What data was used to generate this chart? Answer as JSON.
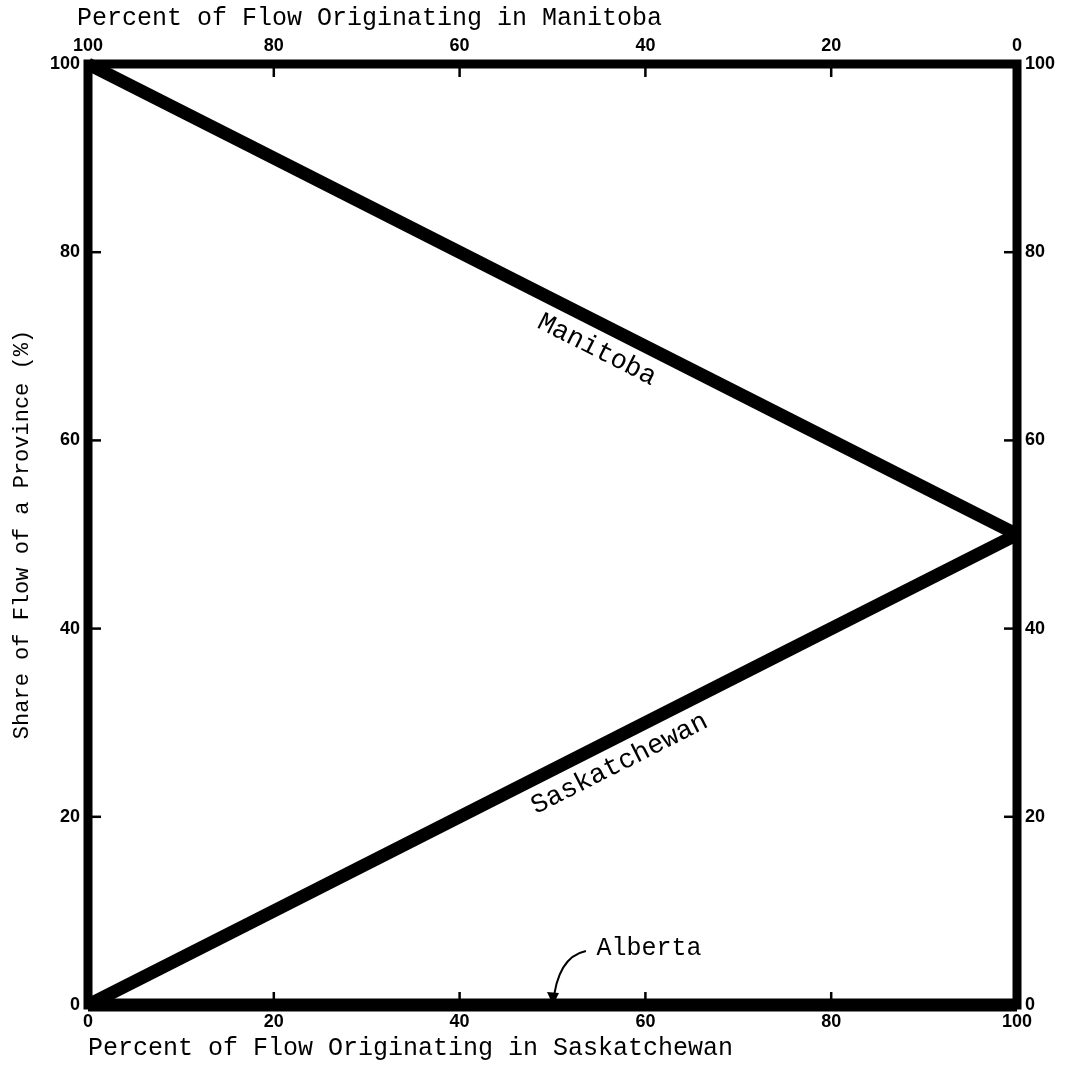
{
  "chart_data": {
    "type": "line",
    "xlabel": "Percent of Flow Originating in Saskatchewan",
    "x2label": "Percent of Flow Originating in Manitoba",
    "ylabel": "Share of Flow of a Province (%)",
    "xlim": [
      0,
      100
    ],
    "xticks": [
      0,
      20,
      40,
      60,
      80,
      100
    ],
    "x2lim": [
      100,
      0
    ],
    "x2ticks": [
      100,
      80,
      60,
      40,
      20,
      0
    ],
    "ylim": [
      0,
      100
    ],
    "yticks": [
      0,
      20,
      40,
      60,
      80,
      100
    ],
    "y2lim": [
      0,
      100
    ],
    "y2ticks": [
      0,
      20,
      40,
      60,
      80,
      100
    ],
    "x": [
      0,
      100
    ],
    "series": [
      {
        "name": "Manitoba",
        "color": "#000000",
        "values": [
          100,
          50
        ]
      },
      {
        "name": "Saskatchewan",
        "color": "#000000",
        "values": [
          0,
          50
        ]
      },
      {
        "color": "#000000",
        "values": [
          0,
          0
        ]
      }
    ],
    "annotations": [
      {
        "text": "Alberta",
        "x": 50,
        "y": 0
      }
    ],
    "legend": false,
    "marker": "none",
    "line_style": "solid"
  }
}
